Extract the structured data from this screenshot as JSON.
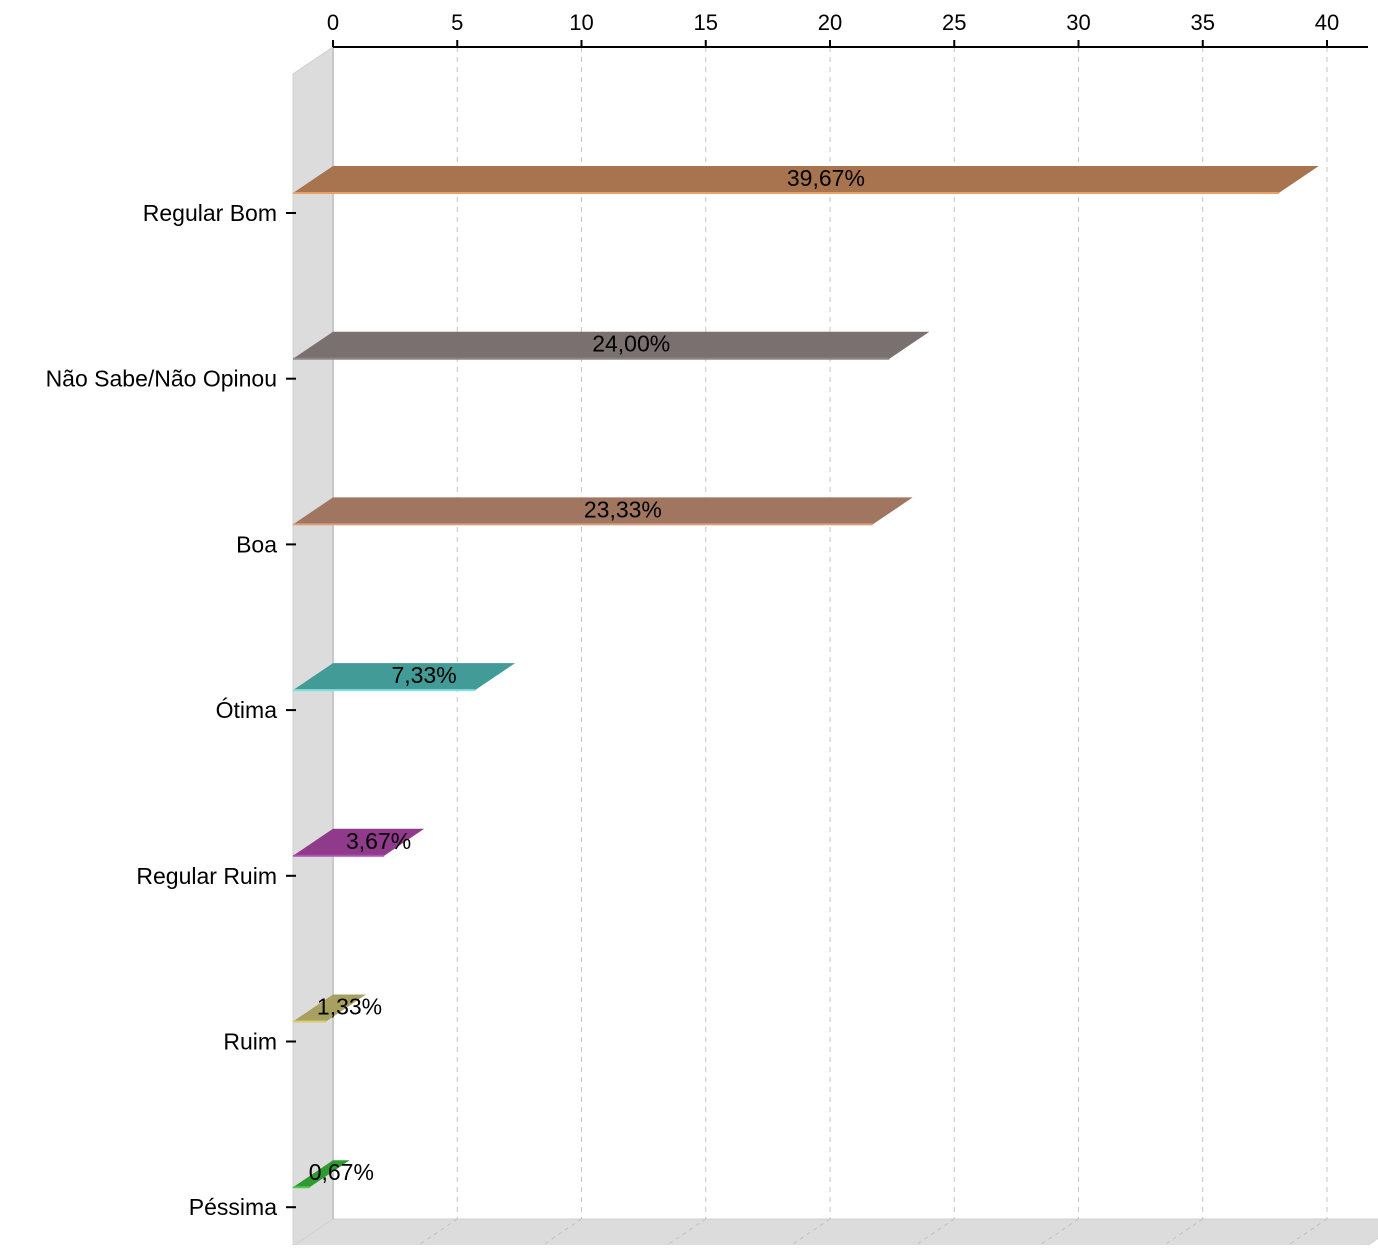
{
  "chart_data": {
    "type": "bar",
    "orientation": "horizontal",
    "style": "3d",
    "categories": [
      "Regular Bom",
      "Não Sabe/Não Opinou",
      "Boa",
      "Ótima",
      "Regular Ruim",
      "Ruim",
      "Péssima"
    ],
    "values": [
      39.67,
      24.0,
      23.33,
      7.33,
      3.67,
      1.33,
      0.67
    ],
    "data_labels": [
      "39,67%",
      "24,00%",
      "23,33%",
      "7,33%",
      "3,67%",
      "1,33%",
      "0,67%"
    ],
    "colors": [
      "#a8734f",
      "#7a7070",
      "#a07660",
      "#439b97",
      "#8f3a8a",
      "#a7a060",
      "#2f9a2f"
    ],
    "edge_colors": [
      "#e8a068",
      "#8e8686",
      "#d8a080",
      "#7fe0e0",
      "#b050b0",
      "#d8cc70",
      "#50c850"
    ],
    "xaxis": {
      "position": "top",
      "ticks": [
        0,
        5,
        10,
        15,
        20,
        25,
        30,
        35,
        40
      ],
      "tick_labels": [
        "0",
        "5",
        "10",
        "15",
        "20",
        "25",
        "30",
        "35",
        "40"
      ],
      "range": [
        0,
        41.6
      ]
    },
    "grid": true,
    "grid_style": "dashed",
    "wall_color": "#dcdcdc",
    "title": "",
    "xlabel": "",
    "ylabel": ""
  }
}
